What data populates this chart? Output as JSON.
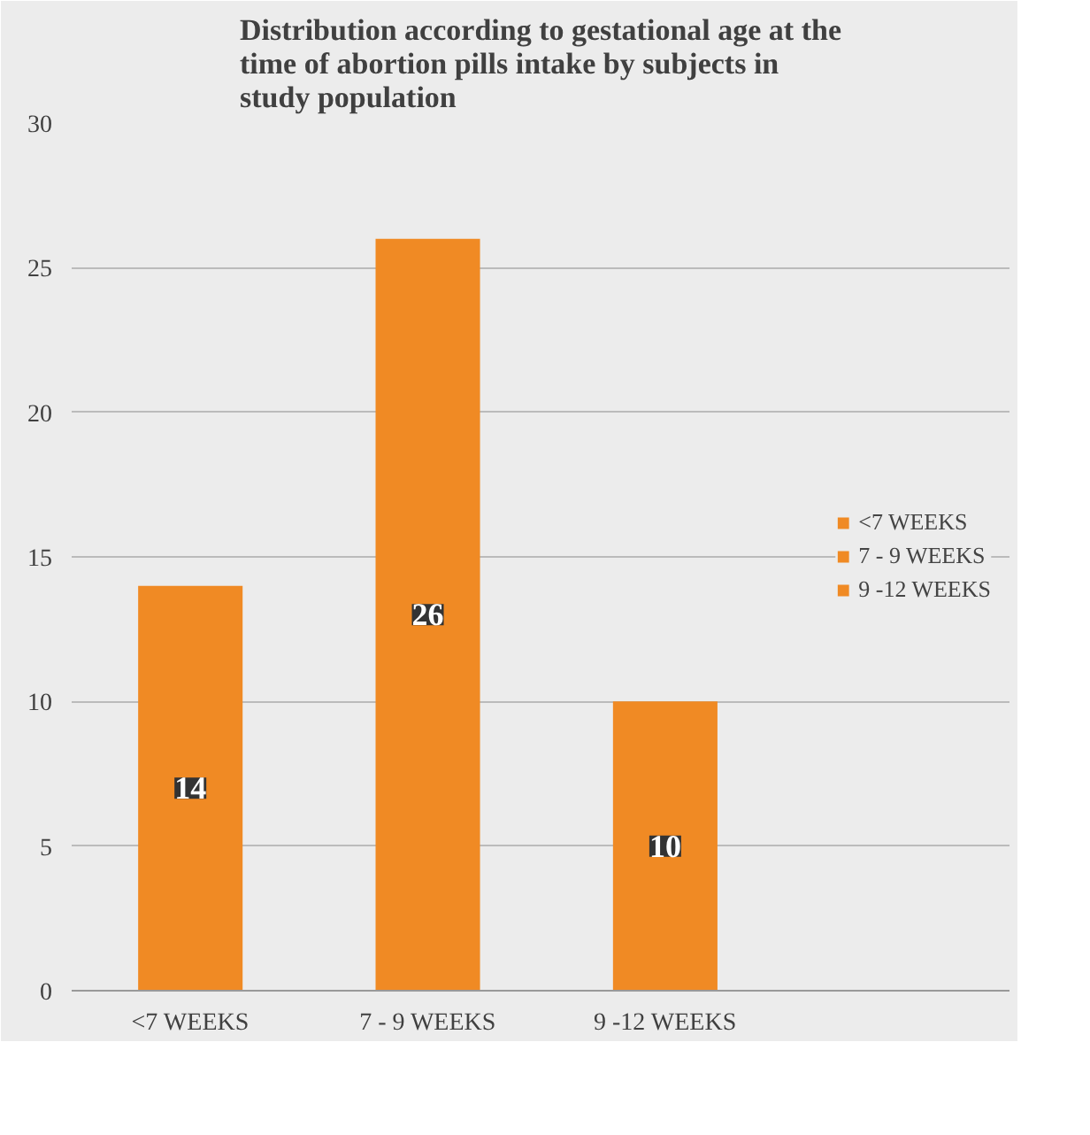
{
  "chart_data": {
    "type": "bar",
    "title": "Distribution according to gestational age at the time of abortion pills intake by subjects in study population",
    "categories": [
      "<7 WEEKS",
      "7 - 9 WEEKS",
      "9 -12 WEEKS"
    ],
    "stacked": true,
    "series": [
      {
        "name": "<7 WEEKS",
        "color": "#f08a24",
        "values": [
          14,
          null,
          null
        ]
      },
      {
        "name": "7 - 9 WEEKS",
        "color": "#f08a24",
        "values": [
          null,
          26,
          null
        ]
      },
      {
        "name": "9 -12 WEEKS",
        "color": "#f08a24",
        "values": [
          null,
          null,
          10
        ]
      }
    ],
    "ylim": [
      0,
      30
    ],
    "yticks": [
      0,
      5,
      10,
      15,
      20,
      25,
      30
    ],
    "grid": "y",
    "legend": "right",
    "data_labels": true
  }
}
